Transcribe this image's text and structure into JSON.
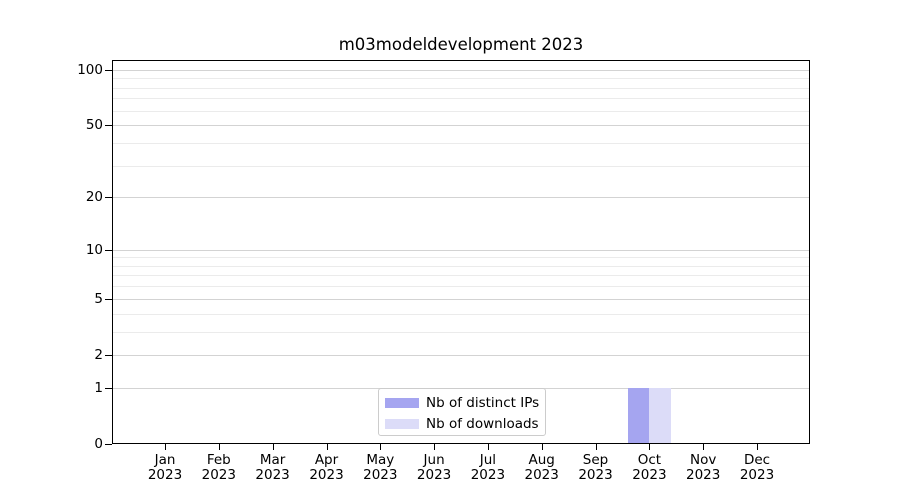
{
  "title": "m03modeldevelopment 2023",
  "legend": {
    "items": [
      {
        "label": "Nb of distinct IPs",
        "color": "#a5a5f0"
      },
      {
        "label": "Nb of downloads",
        "color": "#dcdcf8"
      }
    ],
    "location": "lower center"
  },
  "chart_data": {
    "type": "bar",
    "title": "m03modeldevelopment 2023",
    "categories": [
      "Jan 2023",
      "Feb 2023",
      "Mar 2023",
      "Apr 2023",
      "May 2023",
      "Jun 2023",
      "Jul 2023",
      "Aug 2023",
      "Sep 2023",
      "Oct 2023",
      "Nov 2023",
      "Dec 2023"
    ],
    "series": [
      {
        "name": "Nb of distinct IPs",
        "color": "#a5a5f0",
        "values": [
          0,
          0,
          0,
          0,
          0,
          0,
          0,
          0,
          0,
          1,
          0,
          0
        ]
      },
      {
        "name": "Nb of downloads",
        "color": "#dcdcf8",
        "values": [
          0,
          0,
          0,
          0,
          0,
          0,
          0,
          0,
          0,
          1,
          0,
          0
        ]
      }
    ],
    "xlabel": "",
    "ylabel": "",
    "yscale": "log1p",
    "ylim": [
      0,
      113
    ],
    "yticks": [
      0,
      1,
      2,
      5,
      10,
      20,
      50,
      100
    ],
    "yticks_minor": [
      3,
      4,
      6,
      7,
      8,
      9,
      30,
      40,
      60,
      70,
      80,
      90
    ],
    "grid": "both",
    "legend_position": "lower center"
  },
  "colors": {
    "grid_major": "#d3d3d3",
    "grid_minor": "#ebebeb",
    "spine": "#000000",
    "background": "#ffffff"
  }
}
